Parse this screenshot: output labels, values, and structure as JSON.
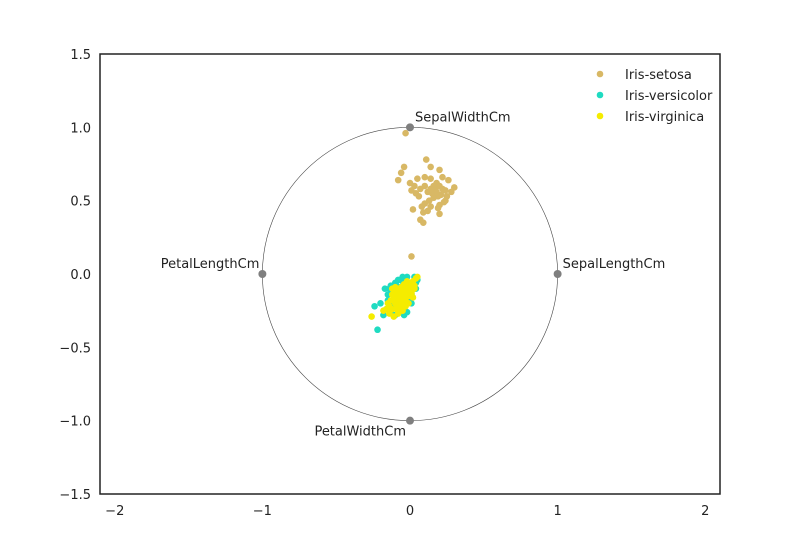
{
  "chart_data": {
    "type": "scatter",
    "title": "",
    "xlabel": "",
    "ylabel": "",
    "xlim": [
      -2.1,
      2.1
    ],
    "ylim": [
      -1.5,
      1.5
    ],
    "x_ticks": [
      -2,
      -1,
      0,
      1,
      2
    ],
    "x_tick_labels": [
      "−2",
      "−1",
      "0",
      "1",
      "2"
    ],
    "y_ticks": [
      -1.5,
      -1.0,
      -0.5,
      0.0,
      0.5,
      1.0,
      1.5
    ],
    "y_tick_labels": [
      "−1.5",
      "−1.0",
      "−0.5",
      "0.0",
      "0.5",
      "1.0",
      "1.5"
    ],
    "grid": false,
    "legend_position": "top-right",
    "circle": {
      "center": [
        0,
        0
      ],
      "radius": 1,
      "color": "#444444"
    },
    "anchors": [
      {
        "name": "SepalLengthCm",
        "x": 1,
        "y": 0
      },
      {
        "name": "SepalWidthCm",
        "x": 0,
        "y": 1
      },
      {
        "name": "PetalLengthCm",
        "x": -1,
        "y": 0
      },
      {
        "name": "PetalWidthCm",
        "x": 0,
        "y": -1
      }
    ],
    "anchor_color": "#7f7f7f",
    "series": [
      {
        "name": "Iris-setosa",
        "color": "#d8b865",
        "points": [
          [
            -0.03,
            0.96
          ],
          [
            0.11,
            0.78
          ],
          [
            0.14,
            0.73
          ],
          [
            0.2,
            0.71
          ],
          [
            -0.04,
            0.73
          ],
          [
            -0.06,
            0.69
          ],
          [
            0.05,
            0.65
          ],
          [
            0.1,
            0.66
          ],
          [
            0.14,
            0.65
          ],
          [
            0.22,
            0.66
          ],
          [
            0.26,
            0.64
          ],
          [
            -0.08,
            0.64
          ],
          [
            0.0,
            0.62
          ],
          [
            0.03,
            0.6
          ],
          [
            0.07,
            0.58
          ],
          [
            0.1,
            0.6
          ],
          [
            0.12,
            0.56
          ],
          [
            0.15,
            0.55
          ],
          [
            0.17,
            0.58
          ],
          [
            0.18,
            0.62
          ],
          [
            0.2,
            0.6
          ],
          [
            0.22,
            0.58
          ],
          [
            0.24,
            0.57
          ],
          [
            0.21,
            0.54
          ],
          [
            0.19,
            0.53
          ],
          [
            0.16,
            0.52
          ],
          [
            0.13,
            0.5
          ],
          [
            0.1,
            0.48
          ],
          [
            0.08,
            0.46
          ],
          [
            0.14,
            0.46
          ],
          [
            0.2,
            0.47
          ],
          [
            0.24,
            0.5
          ],
          [
            0.3,
            0.59
          ],
          [
            0.28,
            0.56
          ],
          [
            0.01,
            0.57
          ],
          [
            0.04,
            0.55
          ],
          [
            0.06,
            0.53
          ],
          [
            0.25,
            0.53
          ],
          [
            0.23,
            0.49
          ],
          [
            0.19,
            0.45
          ],
          [
            0.12,
            0.43
          ],
          [
            0.09,
            0.42
          ],
          [
            0.07,
            0.37
          ],
          [
            0.09,
            0.35
          ],
          [
            0.2,
            0.41
          ],
          [
            0.02,
            0.44
          ],
          [
            0.18,
            0.56
          ],
          [
            0.16,
            0.6
          ],
          [
            0.14,
            0.58
          ],
          [
            0.01,
            0.12
          ]
        ]
      },
      {
        "name": "Iris-versicolor",
        "color": "#1fdbc1",
        "points": [
          [
            -0.22,
            -0.38
          ],
          [
            -0.24,
            -0.22
          ],
          [
            -0.2,
            -0.2
          ],
          [
            -0.16,
            -0.24
          ],
          [
            -0.15,
            -0.18
          ],
          [
            -0.14,
            -0.1
          ],
          [
            -0.12,
            -0.12
          ],
          [
            -0.1,
            -0.06
          ],
          [
            -0.08,
            -0.04
          ],
          [
            -0.05,
            -0.02
          ],
          [
            -0.03,
            -0.04
          ],
          [
            -0.01,
            -0.06
          ],
          [
            0.02,
            -0.08
          ],
          [
            0.05,
            -0.04
          ],
          [
            0.04,
            -0.1
          ],
          [
            -0.02,
            -0.12
          ],
          [
            -0.06,
            -0.14
          ],
          [
            -0.09,
            -0.16
          ],
          [
            -0.12,
            -0.2
          ],
          [
            -0.1,
            -0.22
          ],
          [
            -0.07,
            -0.24
          ],
          [
            -0.03,
            -0.2
          ],
          [
            -0.01,
            -0.17
          ],
          [
            0.01,
            -0.14
          ],
          [
            -0.04,
            -0.28
          ],
          [
            -0.13,
            -0.26
          ],
          [
            -0.18,
            -0.28
          ],
          [
            -0.09,
            -0.08
          ],
          [
            -0.07,
            -0.1
          ],
          [
            0.03,
            -0.02
          ],
          [
            -0.11,
            -0.14
          ],
          [
            -0.05,
            -0.08
          ],
          [
            -0.15,
            -0.14
          ],
          [
            0.0,
            -0.1
          ],
          [
            -0.08,
            -0.18
          ],
          [
            -0.06,
            -0.04
          ],
          [
            -0.02,
            -0.02
          ],
          [
            -0.13,
            -0.08
          ],
          [
            -0.1,
            -0.28
          ],
          [
            -0.02,
            -0.26
          ],
          [
            -0.17,
            -0.1
          ],
          [
            -0.04,
            -0.14
          ],
          [
            -0.07,
            -0.2
          ],
          [
            0.01,
            -0.2
          ],
          [
            -0.11,
            -0.18
          ],
          [
            -0.05,
            -0.16
          ],
          [
            -0.09,
            -0.12
          ],
          [
            -0.14,
            -0.22
          ],
          [
            -0.03,
            -0.1
          ],
          [
            0.04,
            -0.06
          ]
        ]
      },
      {
        "name": "Iris-virginica",
        "color": "#f5ec00",
        "points": [
          [
            -0.26,
            -0.29
          ],
          [
            -0.18,
            -0.25
          ],
          [
            -0.14,
            -0.27
          ],
          [
            -0.12,
            -0.24
          ],
          [
            -0.1,
            -0.2
          ],
          [
            -0.08,
            -0.17
          ],
          [
            -0.06,
            -0.14
          ],
          [
            -0.04,
            -0.12
          ],
          [
            -0.02,
            -0.1
          ],
          [
            0.0,
            -0.08
          ],
          [
            0.02,
            -0.05
          ],
          [
            0.04,
            -0.03
          ],
          [
            0.03,
            -0.1
          ],
          [
            0.01,
            -0.13
          ],
          [
            -0.01,
            -0.15
          ],
          [
            -0.03,
            -0.18
          ],
          [
            -0.05,
            -0.2
          ],
          [
            -0.07,
            -0.22
          ],
          [
            -0.09,
            -0.24
          ],
          [
            -0.11,
            -0.16
          ],
          [
            -0.13,
            -0.18
          ],
          [
            -0.15,
            -0.2
          ],
          [
            -0.12,
            -0.1
          ],
          [
            -0.1,
            -0.13
          ],
          [
            -0.08,
            -0.11
          ],
          [
            -0.06,
            -0.09
          ],
          [
            -0.04,
            -0.07
          ],
          [
            -0.02,
            -0.05
          ],
          [
            0.0,
            -0.13
          ],
          [
            0.02,
            -0.16
          ],
          [
            -0.05,
            -0.25
          ],
          [
            -0.08,
            -0.27
          ],
          [
            -0.11,
            -0.29
          ],
          [
            -0.14,
            -0.22
          ],
          [
            0.03,
            -0.08
          ],
          [
            -0.06,
            -0.18
          ],
          [
            -0.1,
            -0.19
          ],
          [
            -0.03,
            -0.22
          ],
          [
            -0.07,
            -0.15
          ],
          [
            -0.01,
            -0.2
          ],
          [
            -0.12,
            -0.14
          ],
          [
            -0.04,
            -0.16
          ],
          [
            0.01,
            -0.1
          ],
          [
            -0.09,
            -0.21
          ],
          [
            -0.02,
            -0.12
          ],
          [
            -0.16,
            -0.24
          ],
          [
            0.05,
            -0.02
          ],
          [
            -0.08,
            -0.13
          ],
          [
            -0.05,
            -0.11
          ],
          [
            -0.1,
            -0.09
          ]
        ]
      }
    ]
  }
}
